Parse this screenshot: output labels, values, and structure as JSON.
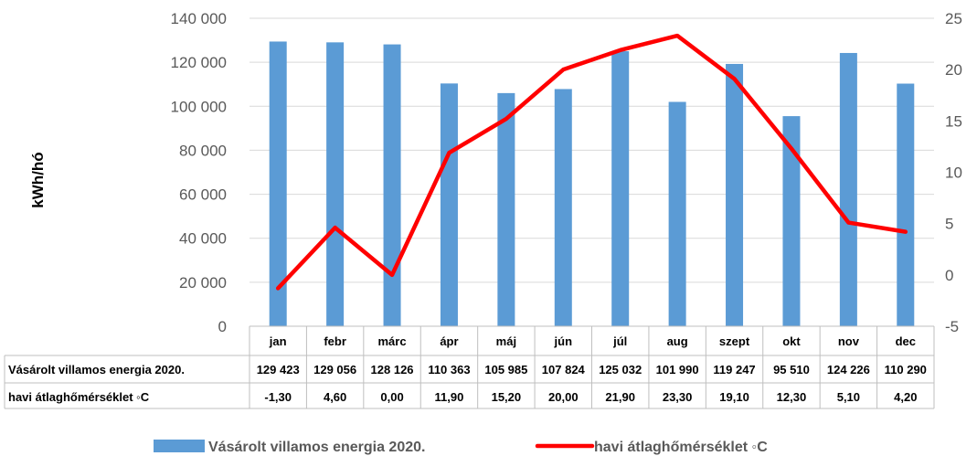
{
  "chart_data": {
    "type": "bar",
    "ylabel": "kWh/hó",
    "ylim": [
      0,
      140000
    ],
    "yticks": [
      "0",
      "20 000",
      "40 000",
      "60 000",
      "80 000",
      "100 000",
      "120 000",
      "140 000"
    ],
    "y2lim": [
      -5,
      25
    ],
    "y2ticks": [
      "-5",
      "0",
      "5",
      "10",
      "15",
      "20",
      "25"
    ],
    "categories": [
      "jan",
      "febr",
      "márc",
      "ápr",
      "máj",
      "jún",
      "júl",
      "aug",
      "szept",
      "okt",
      "nov",
      "dec"
    ],
    "series": [
      {
        "name": "Vásárolt villamos energia 2020.",
        "type": "bar",
        "axis": "left",
        "color": "#5B9BD5",
        "values": [
          129423,
          129056,
          128126,
          110363,
          105985,
          107824,
          125032,
          101990,
          119247,
          95510,
          124226,
          110290
        ],
        "labels": [
          "129 423",
          "129 056",
          "128 126",
          "110 363",
          "105 985",
          "107 824",
          "125 032",
          "101 990",
          "119 247",
          "95 510",
          "124 226",
          "110 290"
        ]
      },
      {
        "name": "havi átlaghőmérséklet ◦C",
        "type": "line",
        "axis": "right",
        "color": "#FF0000",
        "values": [
          -1.3,
          4.6,
          0.0,
          11.9,
          15.2,
          20.0,
          21.9,
          23.3,
          19.1,
          12.3,
          5.1,
          4.2
        ],
        "labels": [
          "-1,30",
          "4,60",
          "0,00",
          "11,90",
          "15,20",
          "20,00",
          "21,90",
          "23,30",
          "19,10",
          "12,30",
          "5,10",
          "4,20"
        ]
      }
    ],
    "data_table": true,
    "legend_position": "bottom"
  }
}
